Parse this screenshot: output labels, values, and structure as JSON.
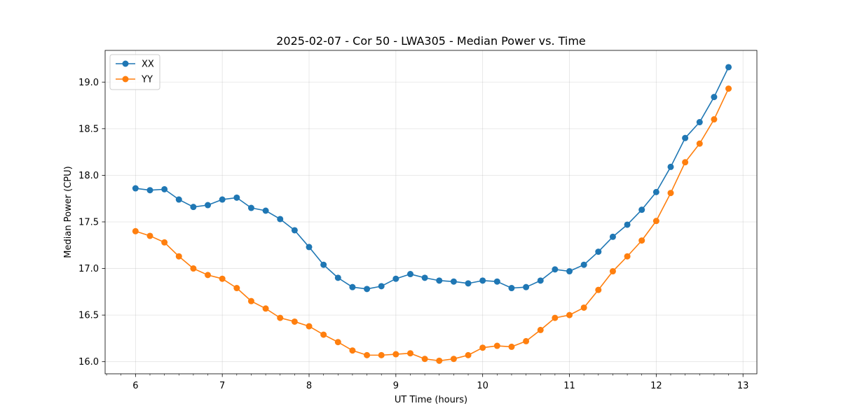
{
  "chart_data": {
    "type": "line",
    "title": "2025-02-07 - Cor 50 - LWA305 - Median Power vs. Time",
    "xlabel": "UT Time (hours)",
    "ylabel": "Median Power (CPU)",
    "xlim": [
      5.65,
      13.16
    ],
    "ylim": [
      15.87,
      19.34
    ],
    "xticks": [
      6,
      7,
      8,
      9,
      10,
      11,
      12,
      13
    ],
    "xtick_labels": [
      "6",
      "7",
      "8",
      "9",
      "10",
      "11",
      "12",
      "13"
    ],
    "yticks": [
      16.0,
      16.5,
      17.0,
      17.5,
      18.0,
      18.5,
      19.0
    ],
    "ytick_labels": [
      "16.0",
      "16.5",
      "17.0",
      "17.5",
      "18.0",
      "18.5",
      "19.0"
    ],
    "grid": true,
    "legend": "upper-left",
    "x": [
      6.0,
      6.1667,
      6.3333,
      6.5,
      6.6667,
      6.8333,
      7.0,
      7.1667,
      7.3333,
      7.5,
      7.6667,
      7.8333,
      8.0,
      8.1667,
      8.3333,
      8.5,
      8.6667,
      8.8333,
      9.0,
      9.1667,
      9.3333,
      9.5,
      9.6667,
      9.8333,
      10.0,
      10.1667,
      10.3333,
      10.5,
      10.6667,
      10.8333,
      11.0,
      11.1667,
      11.3333,
      11.5,
      11.6667,
      11.8333,
      12.0,
      12.1667,
      12.3333,
      12.5,
      12.6667,
      12.8333
    ],
    "series": [
      {
        "name": "XX",
        "color": "#1f77b4",
        "values": [
          17.86,
          17.84,
          17.85,
          17.74,
          17.66,
          17.68,
          17.74,
          17.76,
          17.65,
          17.62,
          17.53,
          17.41,
          17.23,
          17.04,
          16.9,
          16.8,
          16.78,
          16.81,
          16.89,
          16.94,
          16.9,
          16.87,
          16.86,
          16.84,
          16.87,
          16.86,
          16.79,
          16.8,
          16.87,
          16.99,
          16.97,
          17.04,
          17.18,
          17.34,
          17.47,
          17.63,
          17.82,
          18.09,
          18.4,
          18.57,
          18.84,
          19.16
        ]
      },
      {
        "name": "YY",
        "color": "#ff7f0e",
        "values": [
          17.4,
          17.35,
          17.28,
          17.13,
          17.0,
          16.93,
          16.89,
          16.79,
          16.65,
          16.57,
          16.47,
          16.43,
          16.38,
          16.29,
          16.21,
          16.12,
          16.07,
          16.07,
          16.08,
          16.09,
          16.03,
          16.01,
          16.03,
          16.07,
          16.15,
          16.17,
          16.16,
          16.22,
          16.34,
          16.47,
          16.5,
          16.58,
          16.77,
          16.97,
          17.13,
          17.3,
          17.51,
          17.81,
          18.14,
          18.34,
          18.6,
          18.93
        ]
      }
    ]
  }
}
